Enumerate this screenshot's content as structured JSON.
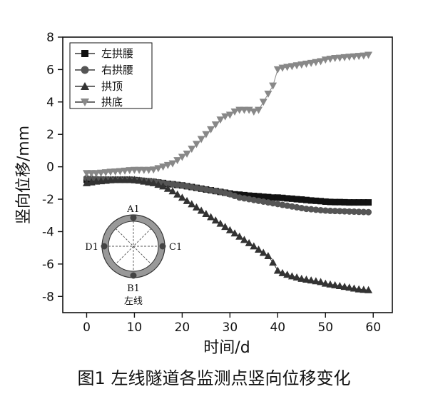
{
  "chart_data": {
    "type": "scatter",
    "xlabel": "时间/d",
    "ylabel": "竖向位移/mm",
    "xlim": [
      -5,
      64
    ],
    "ylim": [
      -9,
      8
    ],
    "xticks": [
      0,
      10,
      20,
      30,
      40,
      50,
      60
    ],
    "yticks": [
      -8,
      -6,
      -4,
      -2,
      0,
      2,
      4,
      6,
      8
    ],
    "legend_position": "top-left",
    "grid": false,
    "x": [
      0,
      1,
      2,
      3,
      4,
      5,
      6,
      7,
      8,
      9,
      10,
      11,
      12,
      13,
      14,
      15,
      16,
      17,
      18,
      19,
      20,
      21,
      22,
      23,
      24,
      25,
      26,
      27,
      28,
      29,
      30,
      31,
      32,
      33,
      34,
      35,
      36,
      37,
      38,
      39,
      40,
      41,
      42,
      43,
      44,
      45,
      46,
      47,
      48,
      49,
      50,
      51,
      52,
      53,
      54,
      55,
      56,
      57,
      58,
      59
    ],
    "series": [
      {
        "name": "左拱腰",
        "marker": "square",
        "color": "#111111",
        "values": [
          -0.8,
          -0.8,
          -0.8,
          -0.8,
          -0.8,
          -0.8,
          -0.8,
          -0.8,
          -0.8,
          -0.8,
          -0.82,
          -0.85,
          -0.88,
          -0.9,
          -0.93,
          -0.97,
          -1.0,
          -1.05,
          -1.08,
          -1.12,
          -1.15,
          -1.2,
          -1.25,
          -1.3,
          -1.35,
          -1.4,
          -1.45,
          -1.5,
          -1.55,
          -1.6,
          -1.65,
          -1.7,
          -1.72,
          -1.75,
          -1.78,
          -1.8,
          -1.82,
          -1.85,
          -1.87,
          -1.9,
          -1.9,
          -1.92,
          -1.95,
          -1.97,
          -2.0,
          -2.02,
          -2.05,
          -2.08,
          -2.1,
          -2.12,
          -2.15,
          -2.17,
          -2.18,
          -2.18,
          -2.19,
          -2.2,
          -2.2,
          -2.2,
          -2.2,
          -2.2
        ]
      },
      {
        "name": "右拱腰",
        "marker": "circle",
        "color": "#555555",
        "values": [
          -0.7,
          -0.72,
          -0.75,
          -0.77,
          -0.78,
          -0.8,
          -0.8,
          -0.8,
          -0.8,
          -0.8,
          -0.8,
          -0.82,
          -0.85,
          -0.88,
          -0.9,
          -0.95,
          -1.0,
          -1.05,
          -1.08,
          -1.12,
          -1.15,
          -1.2,
          -1.25,
          -1.3,
          -1.35,
          -1.4,
          -1.45,
          -1.5,
          -1.55,
          -1.62,
          -1.7,
          -1.8,
          -1.9,
          -1.95,
          -2.0,
          -2.05,
          -2.1,
          -2.15,
          -2.2,
          -2.25,
          -2.3,
          -2.35,
          -2.4,
          -2.45,
          -2.5,
          -2.55,
          -2.6,
          -2.62,
          -2.65,
          -2.68,
          -2.7,
          -2.72,
          -2.73,
          -2.74,
          -2.75,
          -2.76,
          -2.77,
          -2.78,
          -2.79,
          -2.8
        ]
      },
      {
        "name": "拱顶",
        "marker": "triangle-up",
        "color": "#333333",
        "values": [
          -1.0,
          -0.95,
          -0.9,
          -0.88,
          -0.85,
          -0.82,
          -0.8,
          -0.8,
          -0.8,
          -0.8,
          -0.8,
          -0.85,
          -0.9,
          -0.95,
          -1.0,
          -1.1,
          -1.2,
          -1.35,
          -1.5,
          -1.7,
          -1.9,
          -2.1,
          -2.3,
          -2.5,
          -2.7,
          -2.9,
          -3.1,
          -3.3,
          -3.5,
          -3.7,
          -3.9,
          -4.1,
          -4.3,
          -4.5,
          -4.7,
          -4.9,
          -5.1,
          -5.3,
          -5.5,
          -5.9,
          -6.4,
          -6.55,
          -6.65,
          -6.75,
          -6.82,
          -6.9,
          -6.95,
          -7.0,
          -7.05,
          -7.1,
          -7.2,
          -7.25,
          -7.3,
          -7.35,
          -7.4,
          -7.45,
          -7.5,
          -7.55,
          -7.58,
          -7.6
        ]
      },
      {
        "name": "拱底",
        "marker": "triangle-down",
        "color": "#888888",
        "values": [
          -0.4,
          -0.4,
          -0.4,
          -0.38,
          -0.35,
          -0.32,
          -0.3,
          -0.28,
          -0.25,
          -0.22,
          -0.2,
          -0.2,
          -0.2,
          -0.2,
          -0.18,
          -0.1,
          0.0,
          0.1,
          0.2,
          0.4,
          0.6,
          0.8,
          1.1,
          1.4,
          1.7,
          2.0,
          2.3,
          2.6,
          2.9,
          3.1,
          3.2,
          3.4,
          3.5,
          3.5,
          3.5,
          3.4,
          3.5,
          4.0,
          4.5,
          5.0,
          6.0,
          6.1,
          6.15,
          6.2,
          6.25,
          6.3,
          6.35,
          6.4,
          6.45,
          6.5,
          6.6,
          6.65,
          6.7,
          6.72,
          6.75,
          6.78,
          6.8,
          6.83,
          6.85,
          6.9
        ]
      }
    ]
  },
  "inset": {
    "label_top": "A1",
    "label_left": "D1",
    "label_right": "C1",
    "label_bottom": "B1",
    "caption": "左线"
  },
  "figure_caption": "图1   左线隧道各监测点竖向位移变化"
}
